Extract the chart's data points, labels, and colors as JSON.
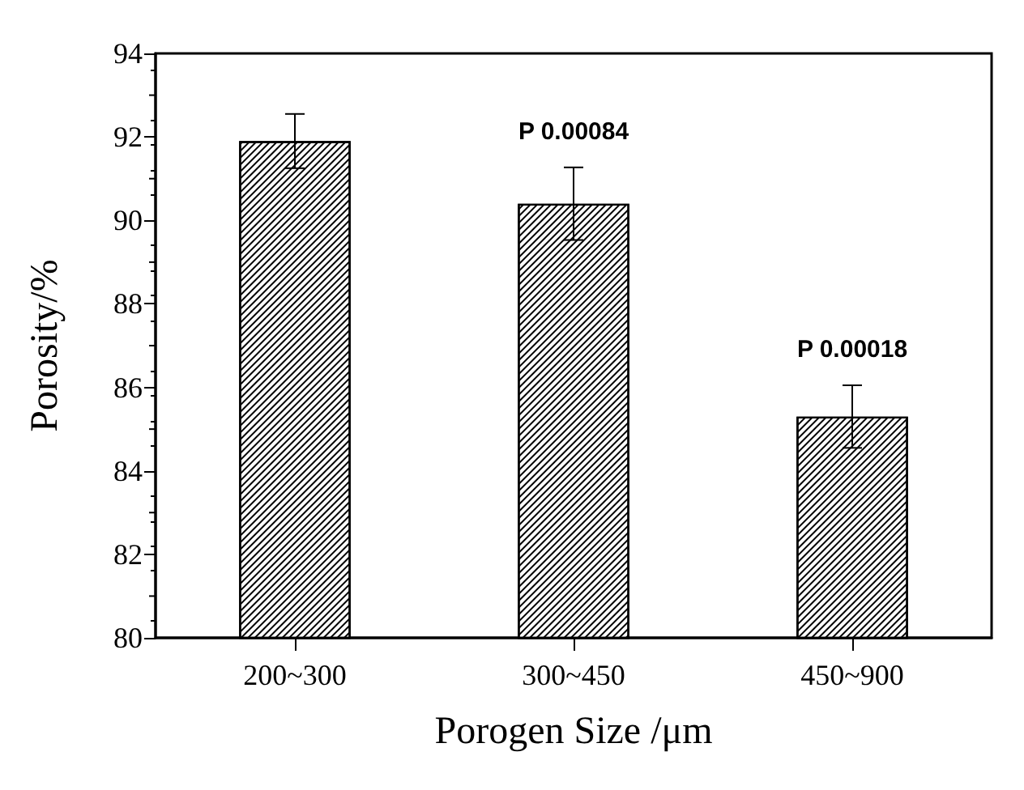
{
  "chart_data": {
    "type": "bar",
    "xlabel": "Porogen Size /μm",
    "ylabel": "Porosity/%",
    "categories": [
      "200~300",
      "300~450",
      "450~900"
    ],
    "values": [
      91.9,
      90.4,
      85.3
    ],
    "errors": [
      0.65,
      0.87,
      0.75
    ],
    "color": "#ffffff",
    "ylim": [
      80,
      94
    ],
    "yticks": [
      80,
      82,
      84,
      86,
      88,
      90,
      92,
      94
    ],
    "grid": false,
    "annotations": [
      "P 0.00084",
      "P 0.00018"
    ]
  }
}
